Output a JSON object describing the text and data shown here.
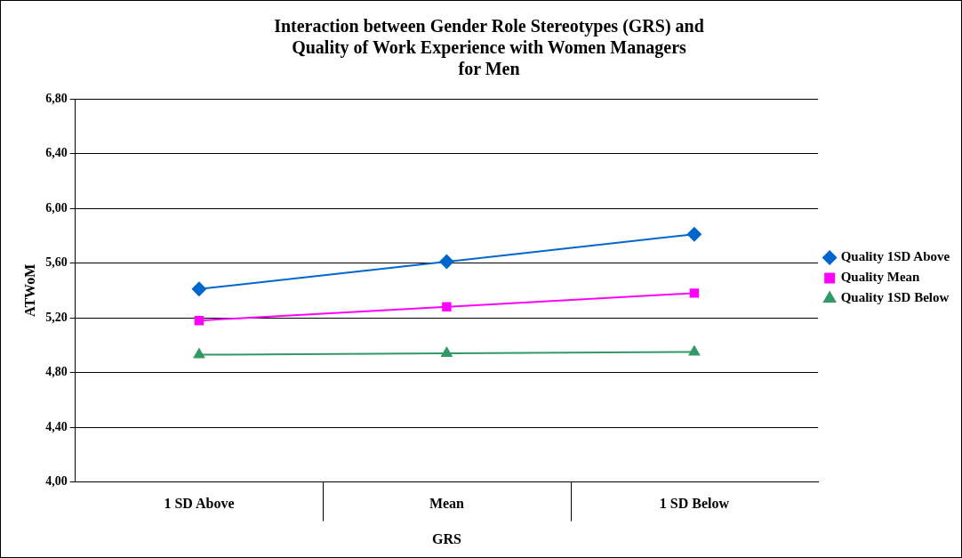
{
  "chart_data": {
    "type": "line",
    "title": "Interaction between Gender Role Stereotypes (GRS) and\nQuality of Work Experience with Women Managers\nfor Men",
    "xlabel": "GRS",
    "ylabel": "ATWoM",
    "categories": [
      "1 SD Above",
      "Mean",
      "1 SD Below"
    ],
    "series": [
      {
        "name": "Quality 1SD Above",
        "color": "#0066cc",
        "marker": "diamond",
        "values": [
          5.41,
          5.61,
          5.81
        ]
      },
      {
        "name": "Quality Mean",
        "color": "#ff00ff",
        "marker": "square",
        "values": [
          5.18,
          5.28,
          5.38
        ]
      },
      {
        "name": "Quality 1SD Below",
        "color": "#339966",
        "marker": "triangle",
        "values": [
          4.93,
          4.94,
          4.95
        ]
      }
    ],
    "ylim": [
      4.0,
      6.8
    ],
    "yticks": [
      {
        "value": 4.0,
        "label": "4,00"
      },
      {
        "value": 4.4,
        "label": "4,40"
      },
      {
        "value": 4.8,
        "label": "4,80"
      },
      {
        "value": 5.2,
        "label": "5,20"
      },
      {
        "value": 5.6,
        "label": "5,60"
      },
      {
        "value": 6.0,
        "label": "6,00"
      },
      {
        "value": 6.4,
        "label": "6,40"
      },
      {
        "value": 6.8,
        "label": "6,80"
      }
    ],
    "grid": "y",
    "legend": "right",
    "line_style": "solid"
  }
}
